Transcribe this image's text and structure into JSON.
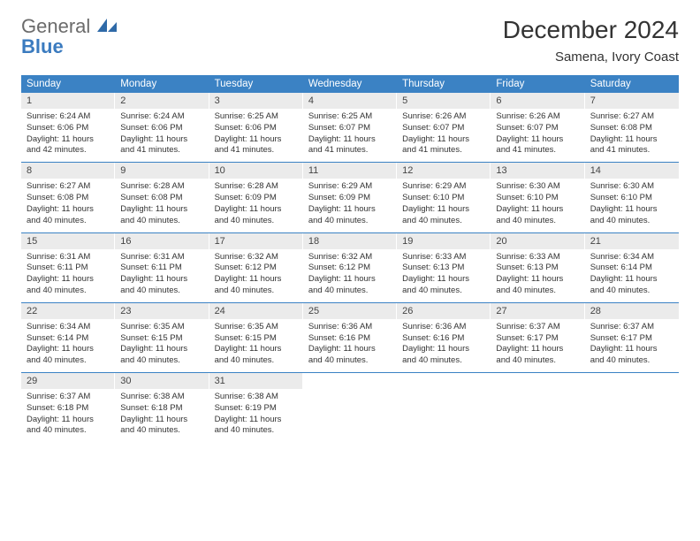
{
  "logo": {
    "line1": "General",
    "line2": "Blue"
  },
  "title": "December 2024",
  "location": "Samena, Ivory Coast",
  "colors": {
    "header_bg": "#3b82c4",
    "header_text": "#ffffff",
    "daynum_bg": "#ebebeb",
    "text": "#333333",
    "logo_gray": "#6b6b6b",
    "logo_blue": "#3b7bbf",
    "rule": "#3b82c4"
  },
  "weekdays": [
    "Sunday",
    "Monday",
    "Tuesday",
    "Wednesday",
    "Thursday",
    "Friday",
    "Saturday"
  ],
  "weeks": [
    [
      {
        "n": "1",
        "sr": "Sunrise: 6:24 AM",
        "ss": "Sunset: 6:06 PM",
        "dl": "Daylight: 11 hours and 42 minutes."
      },
      {
        "n": "2",
        "sr": "Sunrise: 6:24 AM",
        "ss": "Sunset: 6:06 PM",
        "dl": "Daylight: 11 hours and 41 minutes."
      },
      {
        "n": "3",
        "sr": "Sunrise: 6:25 AM",
        "ss": "Sunset: 6:06 PM",
        "dl": "Daylight: 11 hours and 41 minutes."
      },
      {
        "n": "4",
        "sr": "Sunrise: 6:25 AM",
        "ss": "Sunset: 6:07 PM",
        "dl": "Daylight: 11 hours and 41 minutes."
      },
      {
        "n": "5",
        "sr": "Sunrise: 6:26 AM",
        "ss": "Sunset: 6:07 PM",
        "dl": "Daylight: 11 hours and 41 minutes."
      },
      {
        "n": "6",
        "sr": "Sunrise: 6:26 AM",
        "ss": "Sunset: 6:07 PM",
        "dl": "Daylight: 11 hours and 41 minutes."
      },
      {
        "n": "7",
        "sr": "Sunrise: 6:27 AM",
        "ss": "Sunset: 6:08 PM",
        "dl": "Daylight: 11 hours and 41 minutes."
      }
    ],
    [
      {
        "n": "8",
        "sr": "Sunrise: 6:27 AM",
        "ss": "Sunset: 6:08 PM",
        "dl": "Daylight: 11 hours and 40 minutes."
      },
      {
        "n": "9",
        "sr": "Sunrise: 6:28 AM",
        "ss": "Sunset: 6:08 PM",
        "dl": "Daylight: 11 hours and 40 minutes."
      },
      {
        "n": "10",
        "sr": "Sunrise: 6:28 AM",
        "ss": "Sunset: 6:09 PM",
        "dl": "Daylight: 11 hours and 40 minutes."
      },
      {
        "n": "11",
        "sr": "Sunrise: 6:29 AM",
        "ss": "Sunset: 6:09 PM",
        "dl": "Daylight: 11 hours and 40 minutes."
      },
      {
        "n": "12",
        "sr": "Sunrise: 6:29 AM",
        "ss": "Sunset: 6:10 PM",
        "dl": "Daylight: 11 hours and 40 minutes."
      },
      {
        "n": "13",
        "sr": "Sunrise: 6:30 AM",
        "ss": "Sunset: 6:10 PM",
        "dl": "Daylight: 11 hours and 40 minutes."
      },
      {
        "n": "14",
        "sr": "Sunrise: 6:30 AM",
        "ss": "Sunset: 6:10 PM",
        "dl": "Daylight: 11 hours and 40 minutes."
      }
    ],
    [
      {
        "n": "15",
        "sr": "Sunrise: 6:31 AM",
        "ss": "Sunset: 6:11 PM",
        "dl": "Daylight: 11 hours and 40 minutes."
      },
      {
        "n": "16",
        "sr": "Sunrise: 6:31 AM",
        "ss": "Sunset: 6:11 PM",
        "dl": "Daylight: 11 hours and 40 minutes."
      },
      {
        "n": "17",
        "sr": "Sunrise: 6:32 AM",
        "ss": "Sunset: 6:12 PM",
        "dl": "Daylight: 11 hours and 40 minutes."
      },
      {
        "n": "18",
        "sr": "Sunrise: 6:32 AM",
        "ss": "Sunset: 6:12 PM",
        "dl": "Daylight: 11 hours and 40 minutes."
      },
      {
        "n": "19",
        "sr": "Sunrise: 6:33 AM",
        "ss": "Sunset: 6:13 PM",
        "dl": "Daylight: 11 hours and 40 minutes."
      },
      {
        "n": "20",
        "sr": "Sunrise: 6:33 AM",
        "ss": "Sunset: 6:13 PM",
        "dl": "Daylight: 11 hours and 40 minutes."
      },
      {
        "n": "21",
        "sr": "Sunrise: 6:34 AM",
        "ss": "Sunset: 6:14 PM",
        "dl": "Daylight: 11 hours and 40 minutes."
      }
    ],
    [
      {
        "n": "22",
        "sr": "Sunrise: 6:34 AM",
        "ss": "Sunset: 6:14 PM",
        "dl": "Daylight: 11 hours and 40 minutes."
      },
      {
        "n": "23",
        "sr": "Sunrise: 6:35 AM",
        "ss": "Sunset: 6:15 PM",
        "dl": "Daylight: 11 hours and 40 minutes."
      },
      {
        "n": "24",
        "sr": "Sunrise: 6:35 AM",
        "ss": "Sunset: 6:15 PM",
        "dl": "Daylight: 11 hours and 40 minutes."
      },
      {
        "n": "25",
        "sr": "Sunrise: 6:36 AM",
        "ss": "Sunset: 6:16 PM",
        "dl": "Daylight: 11 hours and 40 minutes."
      },
      {
        "n": "26",
        "sr": "Sunrise: 6:36 AM",
        "ss": "Sunset: 6:16 PM",
        "dl": "Daylight: 11 hours and 40 minutes."
      },
      {
        "n": "27",
        "sr": "Sunrise: 6:37 AM",
        "ss": "Sunset: 6:17 PM",
        "dl": "Daylight: 11 hours and 40 minutes."
      },
      {
        "n": "28",
        "sr": "Sunrise: 6:37 AM",
        "ss": "Sunset: 6:17 PM",
        "dl": "Daylight: 11 hours and 40 minutes."
      }
    ],
    [
      {
        "n": "29",
        "sr": "Sunrise: 6:37 AM",
        "ss": "Sunset: 6:18 PM",
        "dl": "Daylight: 11 hours and 40 minutes."
      },
      {
        "n": "30",
        "sr": "Sunrise: 6:38 AM",
        "ss": "Sunset: 6:18 PM",
        "dl": "Daylight: 11 hours and 40 minutes."
      },
      {
        "n": "31",
        "sr": "Sunrise: 6:38 AM",
        "ss": "Sunset: 6:19 PM",
        "dl": "Daylight: 11 hours and 40 minutes."
      },
      null,
      null,
      null,
      null
    ]
  ]
}
